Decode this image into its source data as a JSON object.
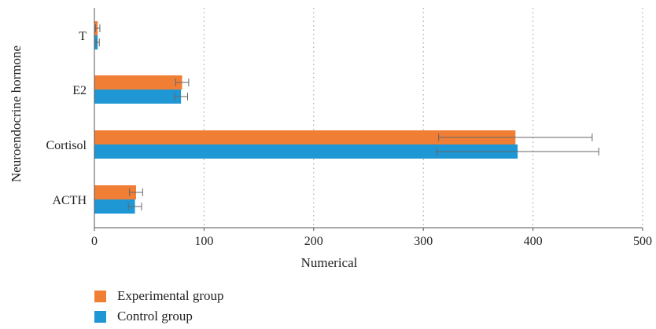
{
  "chart_data": {
    "type": "bar",
    "orientation": "horizontal",
    "xlabel": "Numerical",
    "ylabel": "Neuroendocrine hormone",
    "xlim": [
      0,
      500
    ],
    "xticks": [
      0,
      100,
      200,
      300,
      400,
      500
    ],
    "grid": "vertical dotted",
    "legend_position": "bottom",
    "categories": [
      "T",
      "E2",
      "Cortisol",
      "ACTH"
    ],
    "series": [
      {
        "name": "Experimental group",
        "color": "#f07f35",
        "values": [
          3,
          80,
          384,
          38
        ],
        "errors": [
          2,
          6,
          70,
          6
        ]
      },
      {
        "name": "Control group",
        "color": "#1f97d4",
        "values": [
          3,
          79,
          386,
          37
        ],
        "errors": [
          1.5,
          6,
          74,
          6
        ]
      }
    ]
  }
}
